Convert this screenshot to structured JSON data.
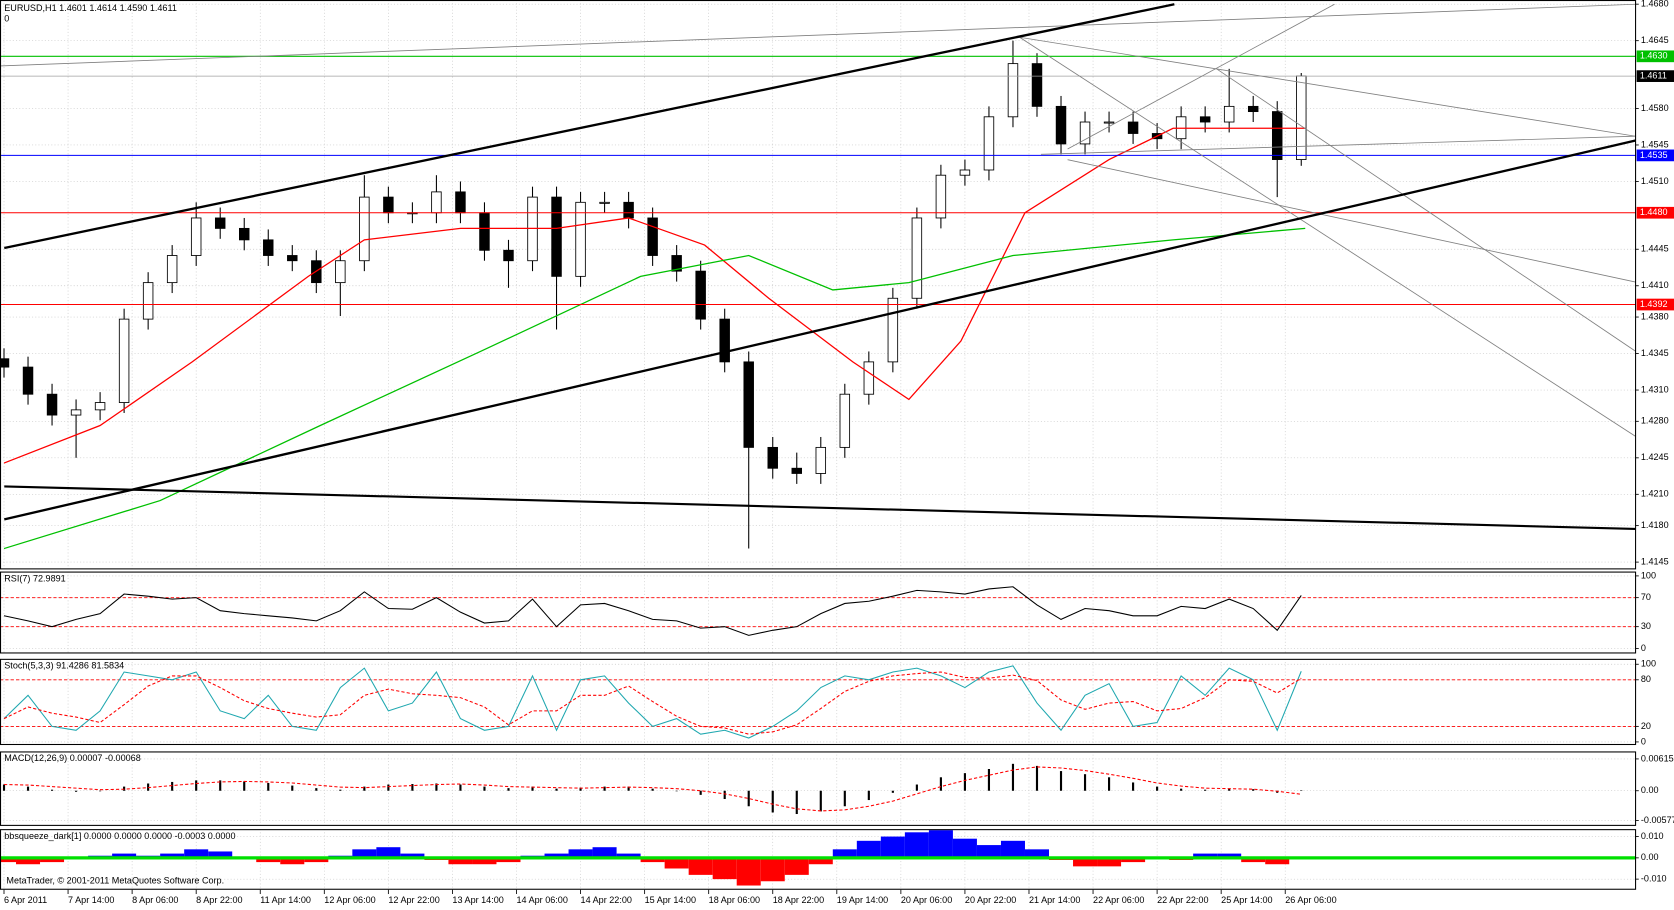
{
  "chart_data": [
    {
      "type": "candlestick",
      "title": "EURUSD,H1  1.4601 1.4614 1.4590 1.4611",
      "subtitle": "0",
      "x": [
        0,
        6,
        12,
        18,
        24,
        30,
        36,
        42,
        48,
        54,
        60,
        66,
        72,
        78,
        84,
        90,
        96,
        102,
        108,
        114,
        120,
        126,
        132,
        138,
        144,
        150,
        156,
        162,
        168,
        174,
        180,
        186,
        192,
        198,
        204,
        210,
        216,
        222,
        228,
        234,
        240,
        246,
        252,
        258,
        264,
        270,
        276,
        282,
        288,
        294,
        300,
        306,
        312,
        318,
        324
      ],
      "open": [
        1.434,
        1.4332,
        1.4306,
        1.4286,
        1.4291,
        1.4298,
        1.4378,
        1.4413,
        1.4439,
        1.4475,
        1.4465,
        1.4454,
        1.4439,
        1.4434,
        1.4413,
        1.4434,
        1.4495,
        1.448,
        1.448,
        1.45,
        1.448,
        1.4444,
        1.4434,
        1.4495,
        1.4419,
        1.449,
        1.449,
        1.4475,
        1.4439,
        1.4424,
        1.4378,
        1.4337,
        1.4255,
        1.4235,
        1.423,
        1.4255,
        1.4306,
        1.4337,
        1.4398,
        1.4475,
        1.4516,
        1.4521,
        1.4572,
        1.4623,
        1.4582,
        1.4546,
        1.4567,
        1.4567,
        1.4556,
        1.4551,
        1.4572,
        1.4567,
        1.4582,
        1.4577,
        1.4531
      ],
      "high": [
        1.435,
        1.4342,
        1.4316,
        1.4301,
        1.4308,
        1.4388,
        1.4423,
        1.4449,
        1.449,
        1.4485,
        1.4475,
        1.4464,
        1.4449,
        1.4444,
        1.4444,
        1.4516,
        1.4505,
        1.449,
        1.4516,
        1.451,
        1.449,
        1.4454,
        1.4505,
        1.4505,
        1.45,
        1.45,
        1.45,
        1.4485,
        1.4449,
        1.4434,
        1.4388,
        1.4347,
        1.4265,
        1.425,
        1.4265,
        1.4316,
        1.4347,
        1.4408,
        1.4485,
        1.4526,
        1.4531,
        1.4582,
        1.4645,
        1.4633,
        1.4592,
        1.4577,
        1.4577,
        1.4577,
        1.4566,
        1.4582,
        1.4582,
        1.4618,
        1.4592,
        1.4587,
        1.4614
      ],
      "low": [
        1.4322,
        1.4296,
        1.4276,
        1.4245,
        1.4281,
        1.4288,
        1.4368,
        1.4403,
        1.4429,
        1.4455,
        1.4444,
        1.4429,
        1.4424,
        1.4403,
        1.4381,
        1.4424,
        1.447,
        1.447,
        1.447,
        1.447,
        1.4434,
        1.4408,
        1.4424,
        1.4368,
        1.4409,
        1.448,
        1.4465,
        1.4429,
        1.4414,
        1.4368,
        1.4327,
        1.4158,
        1.4225,
        1.422,
        1.422,
        1.4245,
        1.4296,
        1.4327,
        1.4388,
        1.4465,
        1.4506,
        1.4511,
        1.4562,
        1.4572,
        1.4536,
        1.4536,
        1.4557,
        1.4546,
        1.4541,
        1.4541,
        1.4557,
        1.4557,
        1.4567,
        1.4495,
        1.4525
      ],
      "close": [
        1.4332,
        1.4306,
        1.4286,
        1.4291,
        1.4298,
        1.4378,
        1.4413,
        1.4439,
        1.4475,
        1.4465,
        1.4454,
        1.4439,
        1.4434,
        1.4413,
        1.4434,
        1.4495,
        1.448,
        1.448,
        1.45,
        1.448,
        1.4444,
        1.4434,
        1.4495,
        1.4419,
        1.449,
        1.449,
        1.4475,
        1.4439,
        1.4424,
        1.4378,
        1.4337,
        1.4255,
        1.4235,
        1.423,
        1.4255,
        1.4306,
        1.4337,
        1.4398,
        1.4475,
        1.4516,
        1.4521,
        1.4572,
        1.4623,
        1.4582,
        1.4546,
        1.4567,
        1.4567,
        1.4556,
        1.4551,
        1.4572,
        1.4567,
        1.4582,
        1.4577,
        1.4531,
        1.4611
      ],
      "up_color": "#ffffff",
      "down_color": "#000000",
      "wick_color": "#000000",
      "overlays": [
        {
          "color": "#ff0000",
          "x": [
            0,
            24,
            47,
            76,
            90,
            114,
            138,
            156,
            175,
            191,
            212,
            226,
            239,
            255,
            276,
            292,
            325
          ],
          "values": [
            1.424,
            1.4276,
            1.4337,
            1.4419,
            1.4454,
            1.4465,
            1.4465,
            1.4475,
            1.4449,
            1.4398,
            1.4337,
            1.4301,
            1.4357,
            1.448,
            1.4531,
            1.4561,
            1.4561
          ]
        },
        {
          "color": "#00c000",
          "x": [
            0,
            39,
            79,
            119,
            159,
            186,
            207,
            226,
            252,
            292,
            325
          ],
          "values": [
            1.4158,
            1.4204,
            1.4276,
            1.4347,
            1.4419,
            1.4439,
            1.4406,
            1.4413,
            1.4439,
            1.4454,
            1.4465
          ]
        }
      ],
      "levels": [
        {
          "value": 1.463,
          "label": "1.4630",
          "color": "#00c000"
        },
        {
          "value": 1.4535,
          "label": "1.4535",
          "color": "#0000ff"
        },
        {
          "value": 1.448,
          "label": "1.4480",
          "color": "#ff0000"
        },
        {
          "value": 1.4392,
          "label": "1.4392",
          "color": "#ff0000"
        }
      ],
      "last_price": 1.4611,
      "xlim": [
        -1,
        407.5
      ],
      "xticks": [
        {
          "value": 0,
          "label": "6 Apr 2011"
        },
        {
          "value": 16,
          "label": "7 Apr 14:00"
        },
        {
          "value": 32,
          "label": "8 Apr 06:00"
        },
        {
          "value": 48,
          "label": "8 Apr 22:00"
        },
        {
          "value": 64,
          "label": "11 Apr 14:00"
        },
        {
          "value": 80,
          "label": "12 Apr 06:00"
        },
        {
          "value": 96,
          "label": "12 Apr 22:00"
        },
        {
          "value": 112,
          "label": "13 Apr 14:00"
        },
        {
          "value": 128,
          "label": "14 Apr 06:00"
        },
        {
          "value": 144,
          "label": "14 Apr 22:00"
        },
        {
          "value": 160,
          "label": "15 Apr 14:00"
        },
        {
          "value": 176,
          "label": "18 Apr 06:00"
        },
        {
          "value": 192,
          "label": "18 Apr 22:00"
        },
        {
          "value": 208,
          "label": "19 Apr 14:00"
        },
        {
          "value": 224,
          "label": "20 Apr 06:00"
        },
        {
          "value": 240,
          "label": "20 Apr 22:00"
        },
        {
          "value": 256,
          "label": "21 Apr 14:00"
        },
        {
          "value": 272,
          "label": "22 Apr 06:00"
        },
        {
          "value": 288,
          "label": "22 Apr 22:00"
        },
        {
          "value": 304,
          "label": "25 Apr 14:00"
        },
        {
          "value": 320,
          "label": "26 Apr 06:00"
        }
      ],
      "ylim": [
        1.4138,
        1.4684
      ],
      "yticks": [
        {
          "value": 1.468,
          "label": "1.4680"
        },
        1.4645,
        {
          "value": 1.458,
          "label": "1.4580"
        },
        1.4545,
        {
          "value": 1.451,
          "label": "1.4510"
        },
        1.4445,
        {
          "value": 1.441,
          "label": "1.4410"
        },
        {
          "value": 1.438,
          "label": "1.4380"
        },
        1.4345,
        {
          "value": 1.431,
          "label": "1.4310"
        },
        {
          "value": 1.428,
          "label": "1.4280"
        },
        1.4245,
        {
          "value": 1.421,
          "label": "1.4210"
        },
        {
          "value": 1.418,
          "label": "1.4180"
        },
        1.4145
      ],
      "grid": true
    },
    {
      "type": "line",
      "title": "RSI(7) 72.9891",
      "series": [
        {
          "color": "#000000",
          "values": [
            45,
            38,
            30,
            40,
            48,
            75,
            72,
            68,
            70,
            52,
            48,
            45,
            42,
            38,
            52,
            78,
            55,
            54,
            70,
            50,
            35,
            38,
            68,
            30,
            60,
            62,
            52,
            40,
            38,
            28,
            30,
            18,
            25,
            30,
            48,
            62,
            65,
            72,
            80,
            78,
            75,
            82,
            85,
            60,
            40,
            55,
            52,
            45,
            45,
            58,
            55,
            68,
            55,
            25,
            73
          ]
        }
      ],
      "level_lines": [
        70,
        30
      ],
      "level_color": "#ff0000",
      "ylim": [
        -7,
        106
      ],
      "yticks": [
        100,
        70,
        30,
        0
      ],
      "grid": true
    },
    {
      "type": "line",
      "title": "Stoch(5,3,3) 91.4286 81.5834",
      "series": [
        {
          "color": "#20a8b0",
          "values": [
            30,
            60,
            20,
            15,
            40,
            90,
            85,
            80,
            90,
            40,
            30,
            60,
            20,
            15,
            70,
            95,
            40,
            50,
            90,
            30,
            15,
            20,
            85,
            15,
            80,
            85,
            50,
            20,
            30,
            10,
            15,
            5,
            20,
            40,
            70,
            85,
            80,
            90,
            95,
            85,
            70,
            90,
            98,
            50,
            15,
            60,
            75,
            20,
            25,
            85,
            60,
            95,
            80,
            15,
            91
          ]
        },
        {
          "color": "#ff0000",
          "dashed": true,
          "values": [
            30,
            45,
            37,
            32,
            25,
            48,
            72,
            85,
            85,
            70,
            53,
            43,
            37,
            32,
            35,
            60,
            68,
            62,
            60,
            57,
            45,
            22,
            40,
            40,
            60,
            60,
            72,
            52,
            33,
            20,
            18,
            10,
            13,
            22,
            43,
            65,
            78,
            85,
            88,
            90,
            83,
            82,
            86,
            79,
            54,
            42,
            50,
            52,
            40,
            43,
            57,
            80,
            78,
            63,
            82
          ]
        }
      ],
      "level_lines": [
        80,
        20
      ],
      "level_color": "#ff0000",
      "ylim": [
        -4,
        107
      ],
      "yticks": [
        100,
        80,
        20,
        0
      ],
      "grid": true
    },
    {
      "type": "bar",
      "title": "MACD(12,26,9) 0.00007 -0.00068",
      "series": [
        {
          "style": "bar",
          "color": "#000000",
          "values": [
            0.0012,
            0.0008,
            0.0002,
            -0.0002,
            0.0,
            0.0008,
            0.0014,
            0.0017,
            0.002,
            0.002,
            0.0018,
            0.0015,
            0.001,
            0.0005,
            0.0002,
            0.0008,
            0.0012,
            0.0013,
            0.0014,
            0.0012,
            0.0008,
            0.0005,
            0.0008,
            0.0004,
            0.0006,
            0.0008,
            0.0008,
            0.0004,
            0.0,
            -0.0008,
            -0.0016,
            -0.003,
            -0.0042,
            -0.0045,
            -0.004,
            -0.003,
            -0.0018,
            -0.0004,
            0.0012,
            0.0026,
            0.0034,
            0.0042,
            0.0052,
            0.0048,
            0.0038,
            0.0032,
            0.0026,
            0.0016,
            0.0008,
            0.0004,
            0.0002,
            0.0004,
            0.0003,
            -0.0004,
            7e-05
          ]
        },
        {
          "style": "line",
          "color": "#ff0000",
          "dashed": true,
          "values": [
            0.0012,
            0.0011,
            0.0008,
            0.0005,
            0.0002,
            0.0003,
            0.0006,
            0.001,
            0.0014,
            0.0017,
            0.0018,
            0.0017,
            0.0015,
            0.0011,
            0.0007,
            0.0006,
            0.0008,
            0.001,
            0.0012,
            0.0013,
            0.0011,
            0.0008,
            0.0007,
            0.0006,
            0.0005,
            0.0006,
            0.0007,
            0.0006,
            0.0004,
            0.0,
            -0.0006,
            -0.0015,
            -0.0026,
            -0.0035,
            -0.0039,
            -0.0037,
            -0.003,
            -0.002,
            -0.0006,
            0.0008,
            0.002,
            0.003,
            0.004,
            0.0046,
            0.0044,
            0.0039,
            0.0032,
            0.0024,
            0.0015,
            0.0009,
            0.0005,
            0.0004,
            0.0003,
            -0.0001,
            -0.00068
          ]
        }
      ],
      "ylim": [
        -0.0068,
        0.0076
      ],
      "yticks": [
        0.00615,
        {
          "value": 0,
          "label": "0.00"
        },
        -0.00577
      ],
      "grid": true
    },
    {
      "type": "bar",
      "title": "bbsqueeze_dark[1] 0.0000 0.0000 0.0000 -0.0003 0.0000",
      "series": [
        {
          "style": "bar",
          "up_color": "#0000ff",
          "down_color": "#ff0000",
          "values": [
            -0.002,
            -0.003,
            -0.002,
            0.0,
            0.001,
            0.002,
            0.001,
            0.002,
            0.004,
            0.003,
            0.0,
            -0.002,
            -0.003,
            -0.002,
            0.001,
            0.004,
            0.005,
            0.002,
            -0.001,
            -0.003,
            -0.003,
            -0.002,
            0.001,
            0.002,
            0.004,
            0.005,
            0.002,
            -0.002,
            -0.005,
            -0.008,
            -0.01,
            -0.013,
            -0.011,
            -0.008,
            -0.003,
            0.004,
            0.008,
            0.01,
            0.012,
            0.013,
            0.009,
            0.006,
            0.008,
            0.004,
            -0.001,
            -0.004,
            -0.004,
            -0.002,
            0.0,
            -0.001,
            0.002,
            0.002,
            -0.002,
            -0.003,
            0.0
          ]
        }
      ],
      "ylim": [
        -0.015,
        0.0135
      ],
      "yticks": [
        {
          "value": 0.01,
          "label": "0.010"
        },
        {
          "value": 0,
          "label": "0.00"
        },
        {
          "value": -0.01,
          "label": "-0.010"
        }
      ],
      "grid": true
    }
  ],
  "footer": "MetaTrader, © 2001-2011 MetaQuotes Software Corp."
}
